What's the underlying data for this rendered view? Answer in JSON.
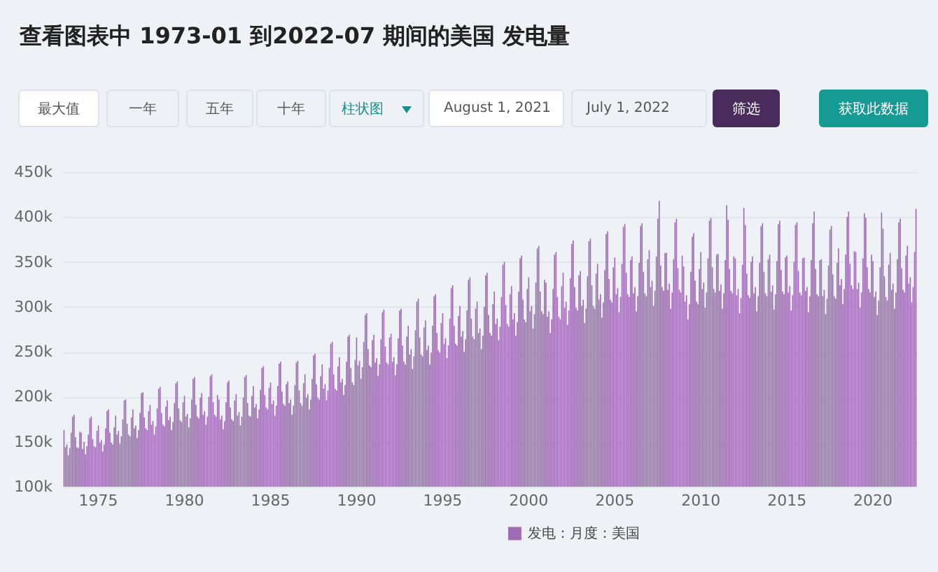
{
  "chart_data": {
    "type": "bar",
    "title": "查看图表中 1973-01 到2022-07 期间的美国 发电量",
    "annotations": [
      "最大值",
      "一年",
      "五年",
      "十年",
      "柱状图",
      "August 1, 2021",
      "July 1, 2022",
      "筛选",
      "获取此数据"
    ],
    "ylim": [
      100000,
      450000
    ],
    "yticks": [
      {
        "value": 100000,
        "label": "100k"
      },
      {
        "value": 150000,
        "label": "150k"
      },
      {
        "value": 200000,
        "label": "200k"
      },
      {
        "value": 250000,
        "label": "250k"
      },
      {
        "value": 300000,
        "label": "300k"
      },
      {
        "value": 350000,
        "label": "350k"
      },
      {
        "value": 400000,
        "label": "400k"
      },
      {
        "value": 450000,
        "label": "450k"
      }
    ],
    "grid": "y",
    "legend": "bottom",
    "categories": [
      null,
      null,
      null,
      null,
      null,
      null,
      null,
      null,
      null,
      null,
      null,
      null,
      null,
      null,
      null,
      null,
      null,
      null,
      null,
      null,
      null,
      null,
      null,
      null,
      "1975",
      null,
      null,
      null,
      null,
      null,
      null,
      null,
      null,
      null,
      null,
      null,
      null,
      null,
      null,
      null,
      null,
      null,
      null,
      null,
      null,
      null,
      null,
      null,
      null,
      null,
      null,
      null,
      null,
      null,
      null,
      null,
      null,
      null,
      null,
      null,
      null,
      null,
      null,
      null,
      null,
      null,
      null,
      null,
      null,
      null,
      null,
      null,
      null,
      null,
      null,
      null,
      null,
      null,
      null,
      null,
      null,
      null,
      null,
      null,
      "1980",
      null,
      null,
      null,
      null,
      null,
      null,
      null,
      null,
      null,
      null,
      null,
      null,
      null,
      null,
      null,
      null,
      null,
      null,
      null,
      null,
      null,
      null,
      null,
      null,
      null,
      null,
      null,
      null,
      null,
      null,
      null,
      null,
      null,
      null,
      null,
      null,
      null,
      null,
      null,
      null,
      null,
      null,
      null,
      null,
      null,
      null,
      null,
      null,
      null,
      null,
      null,
      null,
      null,
      null,
      null,
      null,
      null,
      null,
      null,
      "1985",
      null,
      null,
      null,
      null,
      null,
      null,
      null,
      null,
      null,
      null,
      null,
      null,
      null,
      null,
      null,
      null,
      null,
      null,
      null,
      null,
      null,
      null,
      null,
      null,
      null,
      null,
      null,
      null,
      null,
      null,
      null,
      null,
      null,
      null,
      null,
      null,
      null,
      null,
      null,
      null,
      null,
      null,
      null,
      null,
      null,
      null,
      null,
      null,
      null,
      null,
      null,
      null,
      null,
      null,
      null,
      null,
      null,
      null,
      null,
      "1990",
      null,
      null,
      null,
      null,
      null,
      null,
      null,
      null,
      null,
      null,
      null,
      null,
      null,
      null,
      null,
      null,
      null,
      null,
      null,
      null,
      null,
      null,
      null,
      null,
      null,
      null,
      null,
      null,
      null,
      null,
      null,
      null,
      null,
      null,
      null,
      null,
      null,
      null,
      null,
      null,
      null,
      null,
      null,
      null,
      null,
      null,
      null,
      null,
      null,
      null,
      null,
      null,
      null,
      null,
      null,
      null,
      null,
      null,
      null,
      "1995",
      null,
      null,
      null,
      null,
      null,
      null,
      null,
      null,
      null,
      null,
      null,
      null,
      null,
      null,
      null,
      null,
      null,
      null,
      null,
      null,
      null,
      null,
      null,
      null,
      null,
      null,
      null,
      null,
      null,
      null,
      null,
      null,
      null,
      null,
      null,
      null,
      null,
      null,
      null,
      null,
      null,
      null,
      null,
      null,
      null,
      null,
      null,
      null,
      null,
      null,
      null,
      null,
      null,
      null,
      null,
      null,
      null,
      null,
      null,
      "2000",
      null,
      null,
      null,
      null,
      null,
      null,
      null,
      null,
      null,
      null,
      null,
      null,
      null,
      null,
      null,
      null,
      null,
      null,
      null,
      null,
      null,
      null,
      null,
      null,
      null,
      null,
      null,
      null,
      null,
      null,
      null,
      null,
      null,
      null,
      null,
      null,
      null,
      null,
      null,
      null,
      null,
      null,
      null,
      null,
      null,
      null,
      null,
      null,
      null,
      null,
      null,
      null,
      null,
      null,
      null,
      null,
      null,
      null,
      null,
      "2005",
      null,
      null,
      null,
      null,
      null,
      null,
      null,
      null,
      null,
      null,
      null,
      null,
      null,
      null,
      null,
      null,
      null,
      null,
      null,
      null,
      null,
      null,
      null,
      null,
      null,
      null,
      null,
      null,
      null,
      null,
      null,
      null,
      null,
      null,
      null,
      null,
      null,
      null,
      null,
      null,
      null,
      null,
      null,
      null,
      null,
      null,
      null,
      null,
      null,
      null,
      null,
      null,
      null,
      null,
      null,
      null,
      null,
      null,
      null,
      "2010",
      null,
      null,
      null,
      null,
      null,
      null,
      null,
      null,
      null,
      null,
      null,
      null,
      null,
      null,
      null,
      null,
      null,
      null,
      null,
      null,
      null,
      null,
      null,
      null,
      null,
      null,
      null,
      null,
      null,
      null,
      null,
      null,
      null,
      null,
      null,
      null,
      null,
      null,
      null,
      null,
      null,
      null,
      null,
      null,
      null,
      null,
      null,
      null,
      null,
      null,
      null,
      null,
      null,
      null,
      null,
      null,
      null,
      null,
      null,
      "2015",
      null,
      null,
      null,
      null,
      null,
      null,
      null,
      null,
      null,
      null,
      null,
      null,
      null,
      null,
      null,
      null,
      null,
      null,
      null,
      null,
      null,
      null,
      null,
      null,
      null,
      null,
      null,
      null,
      null,
      null,
      null,
      null,
      null,
      null,
      null,
      null,
      null,
      null,
      null,
      null,
      null,
      null,
      null,
      null,
      null,
      null,
      null,
      null,
      null,
      null,
      null,
      null,
      null,
      null,
      null,
      null,
      null,
      null,
      null,
      "2020",
      null,
      null,
      null,
      null,
      null,
      null,
      null,
      null,
      null,
      null,
      null,
      null,
      null,
      null,
      null,
      null,
      null,
      null,
      null,
      null,
      null,
      null,
      null,
      null,
      null,
      null,
      null,
      null,
      null,
      null
    ],
    "series": [
      {
        "name": "发电：月度：美国",
        "color": "#9e6cb2",
        "values": [
          163000,
          144000,
          147000,
          135000,
          143000,
          160000,
          178000,
          180000,
          155000,
          144000,
          143000,
          161000,
          160000,
          142000,
          150000,
          136000,
          145000,
          158000,
          176000,
          178000,
          153000,
          145000,
          144000,
          162000,
          168000,
          149000,
          152000,
          139000,
          147000,
          165000,
          184000,
          186000,
          160000,
          149000,
          147000,
          166000,
          179000,
          158000,
          162000,
          148000,
          156000,
          175000,
          196000,
          197000,
          170000,
          158000,
          156000,
          177000,
          186000,
          165000,
          168000,
          154000,
          163000,
          182000,
          204000,
          205000,
          177000,
          165000,
          163000,
          184000,
          191000,
          169000,
          173000,
          158000,
          167000,
          187000,
          209000,
          211000,
          182000,
          169000,
          167000,
          189000,
          196000,
          174000,
          178000,
          163000,
          172000,
          193000,
          215000,
          217000,
          187000,
          174000,
          172000,
          194000,
          201000,
          178000,
          181000,
          166000,
          176000,
          197000,
          220000,
          222000,
          191000,
          178000,
          176000,
          199000,
          204000,
          180000,
          184000,
          169000,
          178000,
          200000,
          223000,
          225000,
          194000,
          180000,
          178000,
          202000,
          197000,
          175000,
          179000,
          164000,
          173000,
          194000,
          216000,
          218000,
          188000,
          175000,
          173000,
          196000,
          203000,
          179000,
          183000,
          168000,
          178000,
          199000,
          222000,
          224000,
          193000,
          179000,
          178000,
          201000,
          212000,
          188000,
          192000,
          176000,
          186000,
          208000,
          232000,
          234000,
          202000,
          188000,
          186000,
          210000,
          216000,
          192000,
          196000,
          179000,
          190000,
          212000,
          237000,
          239000,
          206000,
          192000,
          190000,
          214000,
          217000,
          193000,
          197000,
          180000,
          190000,
          213000,
          238000,
          240000,
          207000,
          193000,
          190000,
          215000,
          225000,
          199000,
          203000,
          186000,
          197000,
          220000,
          246000,
          248000,
          214000,
          199000,
          197000,
          223000,
          236000,
          209000,
          214000,
          196000,
          207000,
          232000,
          259000,
          261000,
          225000,
          209000,
          207000,
          234000,
          244000,
          216000,
          220000,
          202000,
          213000,
          239000,
          267000,
          269000,
          232000,
          216000,
          213000,
          241000,
          266000,
          235000,
          240000,
          220000,
          233000,
          261000,
          291000,
          293000,
          253000,
          235000,
          233000,
          263000,
          269000,
          238000,
          243000,
          223000,
          236000,
          264000,
          294000,
          297000,
          256000,
          238000,
          236000,
          266000,
          270000,
          239000,
          244000,
          224000,
          236000,
          265000,
          296000,
          298000,
          257000,
          239000,
          236000,
          267000,
          279000,
          247000,
          253000,
          231000,
          245000,
          274000,
          306000,
          309000,
          266000,
          247000,
          245000,
          277000,
          285000,
          252000,
          257000,
          236000,
          249000,
          279000,
          312000,
          314000,
          271000,
          252000,
          249000,
          282000,
          293000,
          259000,
          265000,
          243000,
          257000,
          287000,
          321000,
          324000,
          279000,
          259000,
          257000,
          290000,
          301000,
          267000,
          273000,
          250000,
          264000,
          296000,
          330000,
          333000,
          287000,
          267000,
          264000,
          298000,
          306000,
          271000,
          276000,
          253000,
          268000,
          300000,
          335000,
          338000,
          291000,
          271000,
          268000,
          303000,
          317000,
          281000,
          287000,
          263000,
          278000,
          311000,
          347000,
          350000,
          302000,
          281000,
          278000,
          314000,
          323000,
          286000,
          293000,
          268000,
          283000,
          317000,
          354000,
          357000,
          308000,
          286000,
          283000,
          320000,
          333000,
          295000,
          301000,
          276000,
          292000,
          327000,
          365000,
          368000,
          317000,
          295000,
          292000,
          330000,
          327000,
          289000,
          295000,
          271000,
          286000,
          320000,
          358000,
          361000,
          311000,
          289000,
          286000,
          323000,
          338000,
          299000,
          306000,
          280000,
          296000,
          332000,
          370000,
          374000,
          322000,
          299000,
          296000,
          335000,
          340000,
          301000,
          308000,
          282000,
          298000,
          334000,
          373000,
          376000,
          324000,
          301000,
          298000,
          337000,
          348000,
          308000,
          314000,
          288000,
          305000,
          341000,
          381000,
          384000,
          331000,
          308000,
          305000,
          344000,
          355000,
          314000,
          321000,
          294000,
          311000,
          348000,
          389000,
          392000,
          338000,
          314000,
          311000,
          352000,
          356000,
          315000,
          322000,
          295000,
          312000,
          349000,
          390000,
          393000,
          339000,
          315000,
          312000,
          353000,
          363000,
          322000,
          329000,
          301000,
          318000,
          356000,
          398000,
          418000,
          346000,
          322000,
          318000,
          360000,
          360000,
          319000,
          326000,
          298000,
          316000,
          353000,
          394000,
          398000,
          343000,
          319000,
          316000,
          357000,
          345000,
          306000,
          313000,
          286000,
          303000,
          339000,
          378000,
          382000,
          329000,
          306000,
          303000,
          342000,
          361000,
          320000,
          327000,
          299000,
          316000,
          354000,
          396000,
          399000,
          344000,
          320000,
          316000,
          358000,
          359000,
          318000,
          325000,
          298000,
          315000,
          352000,
          413000,
          397000,
          342000,
          318000,
          315000,
          356000,
          354000,
          313000,
          320000,
          293000,
          310000,
          347000,
          410000,
          391000,
          337000,
          313000,
          310000,
          350000,
          356000,
          315000,
          322000,
          295000,
          312000,
          349000,
          390000,
          393000,
          339000,
          315000,
          312000,
          353000,
          358000,
          317000,
          324000,
          297000,
          314000,
          351000,
          392000,
          396000,
          341000,
          317000,
          314000,
          355000,
          357000,
          316000,
          323000,
          296000,
          313000,
          350000,
          391000,
          394000,
          340000,
          316000,
          313000,
          354000,
          355000,
          318000,
          322000,
          294000,
          312000,
          352000,
          393000,
          406000,
          342000,
          314000,
          312000,
          352000,
          353000,
          312000,
          319000,
          292000,
          309000,
          346000,
          386000,
          390000,
          336000,
          312000,
          309000,
          349000,
          365000,
          324000,
          331000,
          303000,
          320000,
          358000,
          400000,
          406000,
          348000,
          324000,
          320000,
          362000,
          361000,
          320000,
          327000,
          299000,
          316000,
          354000,
          404000,
          399000,
          344000,
          320000,
          316000,
          358000,
          351000,
          311000,
          317000,
          291000,
          307000,
          344000,
          405000,
          387000,
          334000,
          311000,
          307000,
          347000,
          360000,
          319000,
          326000,
          298000,
          316000,
          353000,
          394000,
          398000,
          343000,
          319000,
          316000,
          357000,
          368000,
          326000,
          333000,
          305000,
          322000,
          361000,
          409000
        ]
      }
    ]
  }
}
